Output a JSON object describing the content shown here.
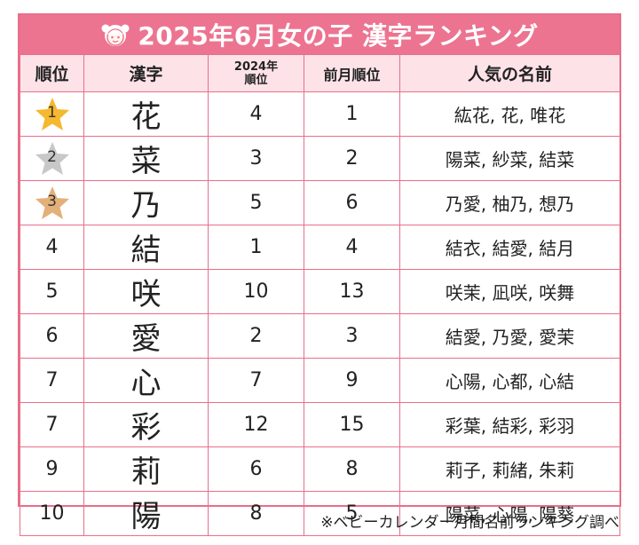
{
  "title": "2025年6月女の子 漢字ランキング",
  "headers": {
    "rank": "順位",
    "kanji": "漢字",
    "rank2024_line1": "2024年",
    "rank2024_line2": "順位",
    "prev_month": "前月順位",
    "popular_names": "人気の名前"
  },
  "colors": {
    "accent": "#ec7491",
    "header_bg": "#fde3e8",
    "gold": "#f5b82e",
    "silver": "#c8c8c8",
    "bronze": "#e3b07a"
  },
  "rows": [
    {
      "rank": "1",
      "kanji": "花",
      "rank2024": "4",
      "prev": "1",
      "names": "紘花, 花, 唯花"
    },
    {
      "rank": "2",
      "kanji": "菜",
      "rank2024": "3",
      "prev": "2",
      "names": "陽菜, 紗菜, 結菜"
    },
    {
      "rank": "3",
      "kanji": "乃",
      "rank2024": "5",
      "prev": "6",
      "names": "乃愛, 柚乃, 想乃"
    },
    {
      "rank": "4",
      "kanji": "結",
      "rank2024": "1",
      "prev": "4",
      "names": "結衣, 結愛, 結月"
    },
    {
      "rank": "5",
      "kanji": "咲",
      "rank2024": "10",
      "prev": "13",
      "names": "咲茉, 凪咲, 咲舞"
    },
    {
      "rank": "6",
      "kanji": "愛",
      "rank2024": "2",
      "prev": "3",
      "names": "結愛, 乃愛, 愛茉"
    },
    {
      "rank": "7",
      "kanji": "心",
      "rank2024": "7",
      "prev": "9",
      "names": "心陽, 心都, 心結"
    },
    {
      "rank": "7",
      "kanji": "彩",
      "rank2024": "12",
      "prev": "15",
      "names": "彩葉, 結彩, 彩羽"
    },
    {
      "rank": "9",
      "kanji": "莉",
      "rank2024": "6",
      "prev": "8",
      "names": "莉子, 莉緒, 朱莉"
    },
    {
      "rank": "10",
      "kanji": "陽",
      "rank2024": "8",
      "prev": "5",
      "names": "陽菜, 心陽, 陽葵"
    }
  ],
  "footnote": "※ベビーカレンダー月間名前ランキング調べ"
}
